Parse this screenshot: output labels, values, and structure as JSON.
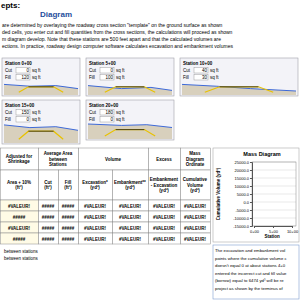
{
  "header": {
    "title_left": "epts:",
    "title_right": "Diagram"
  },
  "intro": [
    "are determined by overlaying the roadway cross section \"template\" on the ground surface as shown",
    "ded cells, you enter cut and fill quantities from the cross sections, the calculations will proceed as shown",
    "m diagram develop.  Note that these stations are 500 feet apart and that the calculated volumes are",
    "ections.  In practice, roadway design computer software calculates excavation and embankment volumes"
  ],
  "sections": [
    {
      "station": "Station 0+00",
      "cut_label": "Cut",
      "cut": 0,
      "fill_label": "Fill",
      "fill": 120,
      "unit": "sq ft"
    },
    {
      "station": "Station 5+00",
      "cut_label": "Cut",
      "cut": 0,
      "fill_label": "Fill",
      "fill": 100,
      "unit": "sq ft"
    },
    {
      "station": "Station 10+00",
      "cut_label": "Cut",
      "cut": 40,
      "fill_label": "Fill",
      "fill": 30,
      "unit": "sq ft"
    },
    {
      "station": "Station 15+00",
      "cut_label": "Cut",
      "cut": 150,
      "fill_label": "Fill",
      "fill": 0,
      "unit": "sq ft"
    },
    {
      "station": "Station 20+00",
      "cut_label": "Cut",
      "cut": 180,
      "fill_label": "Fill",
      "fill": 0,
      "unit": "sq ft"
    }
  ],
  "table": {
    "groups": [
      {
        "lines": [
          "Adjusted for",
          "Shrinkage"
        ],
        "span": 1
      },
      {
        "lines": [
          "Average Area",
          "between",
          "Stations"
        ],
        "span": 2
      },
      {
        "lines": [
          "Volume"
        ],
        "span": 2
      },
      {
        "lines": [
          "Excess"
        ],
        "span": 1
      },
      {
        "lines": [
          "Mass",
          "Diagram",
          "Ordinate"
        ],
        "span": 1
      }
    ],
    "columns": [
      {
        "lines": [
          "Area + 10%",
          "(ft²)"
        ]
      },
      {
        "lines": [
          "Cut",
          "(ft²)"
        ]
      },
      {
        "lines": [
          "Fill",
          "(ft²)"
        ]
      },
      {
        "lines": [
          "Excavation*",
          "(yd³)"
        ]
      },
      {
        "lines": [
          "Embankment**",
          "(yd³)"
        ]
      },
      {
        "lines": [
          "Embankment",
          "- Excavation",
          "(yd³)"
        ]
      },
      {
        "lines": [
          "Cumulative",
          "Volume",
          "(yd³)"
        ]
      }
    ],
    "rows": [
      [
        "#VALEUR!",
        "#####",
        "#####",
        "#VALEUR!",
        "#VALEUR!",
        "#VALEUR!",
        "#VALEUR!"
      ],
      [
        "#####",
        "#####",
        "#####",
        "#VALEUR!",
        "#VALEUR!",
        "#VALEUR!",
        "#VALEUR!"
      ],
      [
        "#VALEUR!",
        "#####",
        "#####",
        "#VALEUR!",
        "#VALEUR!",
        "#VALEUR!",
        "#VALEUR!"
      ],
      [
        "#####",
        "#####",
        "#####",
        "#VALEUR!",
        "#VALEUR!",
        "#VALEUR!",
        "#VALEUR!"
      ]
    ]
  },
  "footnotes": [
    "between stations",
    "between stations"
  ],
  "chart_data": {
    "type": "line",
    "title": "Mass Diagram",
    "x_label": "Station",
    "y_label": "Cumulative Volume (yd³)",
    "categories": [
      "0+00",
      "5+00",
      "10+00"
    ],
    "values": [
      null,
      null,
      null
    ],
    "ylim": [
      -15000,
      25000
    ],
    "yticks": [
      {
        "value": 25000,
        "label": "25000.0"
      },
      {
        "value": 20000,
        "label": "20000.0"
      },
      {
        "value": 15000,
        "label": "15000.0"
      },
      {
        "value": 10000,
        "label": "10000.0"
      },
      {
        "value": 5000,
        "label": "5000.0"
      },
      {
        "value": 0,
        "label": "0.0"
      },
      {
        "value": -5000,
        "label": "-5000.0"
      },
      {
        "value": -10000,
        "label": "-10000.0"
      },
      {
        "value": -15000,
        "label": "-15000.0"
      }
    ],
    "grid": true
  },
  "caption_lines": [
    "The excavation and embankment vol",
    "points where the cumulative volume c",
    "doesn't equal 0 at about stations 4+0",
    "entered the incorrect cut and fill value",
    "(borrow) equal to 6474 yd³ will be re",
    "project as shown by the terminus of"
  ]
}
